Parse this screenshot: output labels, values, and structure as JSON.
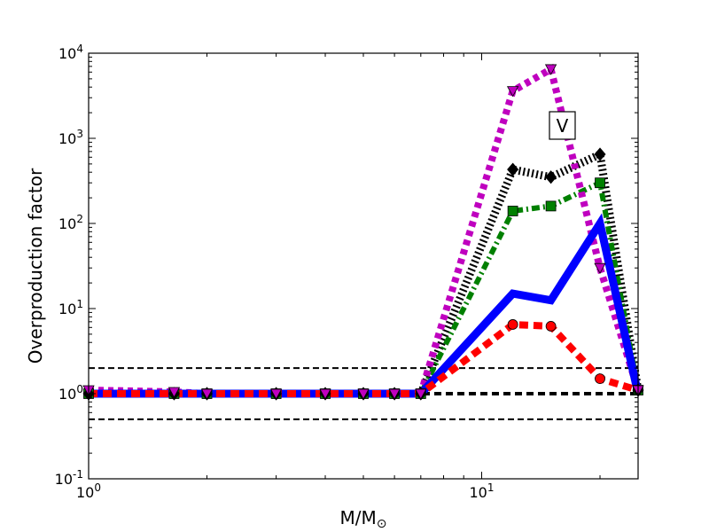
{
  "chart_data": {
    "type": "line",
    "xscale": "log",
    "yscale": "log",
    "xlim": [
      1,
      25
    ],
    "ylim": [
      0.1,
      10000
    ],
    "xlabel": "M/M",
    "xlabel_sub": "⊙",
    "ylabel": "Overproduction factor",
    "annotation": "V",
    "grid": false,
    "x_ticks": [
      {
        "value": 1,
        "base": "10",
        "exp": "0"
      },
      {
        "value": 10,
        "base": "10",
        "exp": "1"
      }
    ],
    "y_ticks": [
      {
        "value": 0.1,
        "base": "10",
        "exp": "-1"
      },
      {
        "value": 1,
        "base": "10",
        "exp": "0"
      },
      {
        "value": 10,
        "base": "10",
        "exp": "1"
      },
      {
        "value": 100,
        "base": "10",
        "exp": "2"
      },
      {
        "value": 1000,
        "base": "10",
        "exp": "3"
      },
      {
        "value": 10000,
        "base": "10",
        "exp": "4"
      }
    ],
    "reference_lines": [
      {
        "y": 2,
        "style": "thin-dashed",
        "color": "#000000"
      },
      {
        "y": 1,
        "style": "thick-dashed",
        "color": "#000000"
      },
      {
        "y": 0.5,
        "style": "thin-dashed",
        "color": "#000000"
      }
    ],
    "x": [
      1,
      1.65,
      2,
      3,
      4,
      5,
      6,
      7,
      12,
      15,
      20,
      25
    ],
    "series": [
      {
        "color": "#0000ff",
        "style": "solid",
        "marker": "none",
        "values": [
          1.0,
          1.0,
          1.0,
          1.0,
          1.0,
          1.0,
          1.0,
          1.0,
          15,
          12.5,
          100,
          1.0
        ]
      },
      {
        "color": "#ff0000",
        "style": "dashed",
        "marker": "circle",
        "values": [
          1.0,
          1.0,
          1.0,
          1.0,
          1.0,
          1.0,
          1.0,
          1.0,
          6.5,
          6.2,
          1.5,
          1.1
        ]
      },
      {
        "color": "#008000",
        "style": "dashdot",
        "marker": "square",
        "values": [
          1.0,
          1.0,
          1.0,
          1.0,
          1.0,
          1.0,
          1.0,
          1.0,
          140,
          160,
          300,
          1.1
        ]
      },
      {
        "color": "#000000",
        "style": "dotted",
        "marker": "diamond",
        "values": [
          1.0,
          1.0,
          1.0,
          1.0,
          1.0,
          1.0,
          1.0,
          1.0,
          430,
          350,
          650,
          1.1
        ]
      },
      {
        "color": "#bf00bf",
        "style": "dotted",
        "marker": "triangle-down",
        "values": [
          1.1,
          1.05,
          1.0,
          1.0,
          1.0,
          1.0,
          1.0,
          1.0,
          3600,
          6500,
          30,
          1.1
        ]
      }
    ]
  }
}
